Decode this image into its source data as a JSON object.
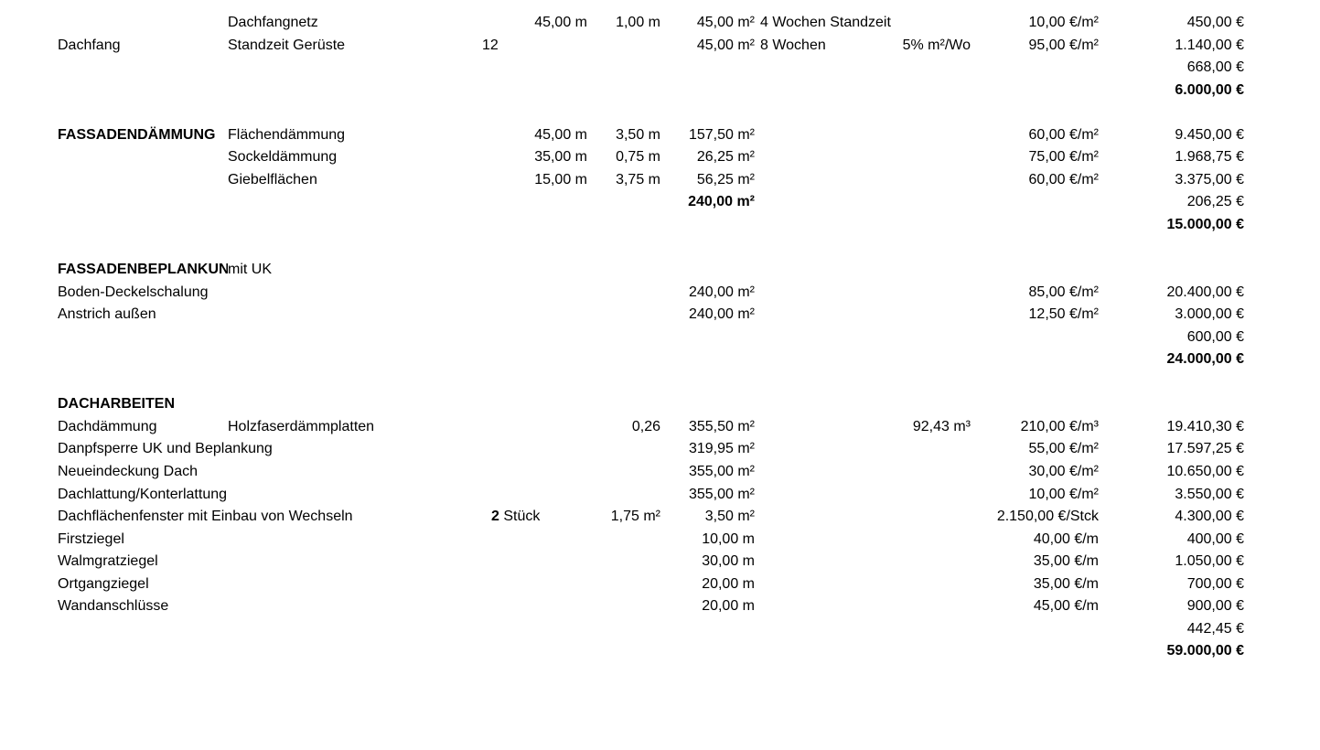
{
  "rows": [
    {
      "b": "Dachfangnetz",
      "d": "45,00 m",
      "e": "1,00 m",
      "f": "45,00 m²",
      "f2": "4 Wochen Standzeit",
      "h": "10,00 €/m²",
      "i": "450,00 €"
    },
    {
      "a": "Dachfang",
      "b": "Standzeit Gerüste",
      "c": "12",
      "f": "45,00 m²",
      "f2": "8 Wochen",
      "g": "5% m²/Wo",
      "h": "95,00 €/m²",
      "i": "1.140,00 €"
    },
    {
      "i": "668,00 €"
    },
    {
      "i": "6.000,00 €",
      "bold": [
        "i"
      ]
    },
    {},
    {
      "a": "FASSADENDÄMMUNG",
      "b": "Flächendämmung",
      "d": "45,00 m",
      "e": "3,50 m",
      "f": "157,50 m²",
      "h": "60,00 €/m²",
      "i": "9.450,00 €",
      "bold": [
        "a"
      ]
    },
    {
      "b": "Sockeldämmung",
      "d": "35,00 m",
      "e": "0,75 m",
      "f": "26,25 m²",
      "h": "75,00 €/m²",
      "i": "1.968,75 €"
    },
    {
      "b": "Giebelflächen",
      "d": "15,00 m",
      "e": "3,75 m",
      "f": "56,25 m²",
      "h": "60,00 €/m²",
      "i": "3.375,00 €"
    },
    {
      "f": "240,00 m²",
      "i": "206,25 €",
      "bold": [
        "f"
      ]
    },
    {
      "i": "15.000,00 €",
      "bold": [
        "i"
      ]
    },
    {},
    {
      "a": "FASSADENBEPLANKUNG",
      "b": "mit UK",
      "bold": [
        "a"
      ]
    },
    {
      "a": "Boden-Deckelschalung",
      "f": "240,00 m²",
      "h": "85,00 €/m²",
      "i": "20.400,00 €",
      "wide": true
    },
    {
      "a": "Anstrich außen",
      "f": "240,00 m²",
      "h": "12,50 €/m²",
      "i": "3.000,00 €"
    },
    {
      "i": "600,00 €"
    },
    {
      "i": "24.000,00 €",
      "bold": [
        "i"
      ]
    },
    {},
    {
      "a": "DACHARBEITEN",
      "bold": [
        "a"
      ]
    },
    {
      "a": "Dachdämmung",
      "b": "Holzfaserdämmplatten",
      "e": "0,26",
      "f": "355,50 m²",
      "g": "92,43 m³",
      "h": "210,00 €/m³",
      "i": "19.410,30 €"
    },
    {
      "a": "Danpfsperre UK und Beplankung",
      "f": "319,95 m²",
      "h": "55,00 €/m²",
      "i": "17.597,25 €",
      "wide": true
    },
    {
      "a": "Neueindeckung Dach",
      "f": "355,00 m²",
      "h": "30,00 €/m²",
      "i": "10.650,00 €"
    },
    {
      "a": "Dachlattung/Konterlattung",
      "f": "355,00 m²",
      "h": "10,00 €/m²",
      "i": "3.550,00 €",
      "wide": true
    },
    {
      "a": "Dachflächenfenster mit Einbau von Wechseln",
      "c2n": "2",
      "c2u": "Stück",
      "e": "1,75 m²",
      "f": "3,50 m²",
      "h": "2.150,00 €/Stck",
      "i": "4.300,00 €",
      "wide": true
    },
    {
      "a": "Firstziegel",
      "f": "10,00 m",
      "h": "40,00 €/m",
      "i": "400,00 €"
    },
    {
      "a": "Walmgratziegel",
      "f": "30,00 m",
      "h": "35,00 €/m",
      "i": "1.050,00 €"
    },
    {
      "a": "Ortgangziegel",
      "f": "20,00 m",
      "h": "35,00 €/m",
      "i": "700,00 €"
    },
    {
      "a": "Wandanschlüsse",
      "f": "20,00 m",
      "h": "45,00 €/m",
      "i": "900,00 €"
    },
    {
      "i": "442,45 €"
    },
    {
      "i": "59.000,00 €",
      "bold": [
        "i"
      ]
    }
  ]
}
